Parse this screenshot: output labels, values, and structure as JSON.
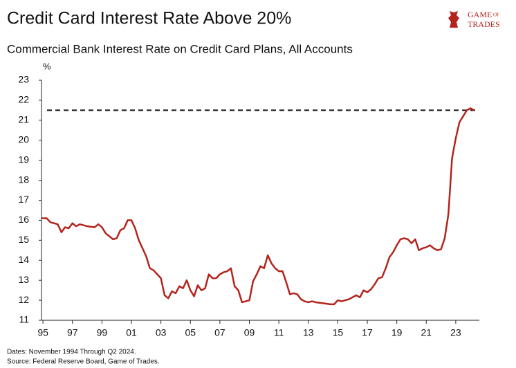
{
  "chart_data": {
    "type": "line",
    "title": "Credit Card Interest Rate Above 20%",
    "subtitle": "Commercial Bank Interest Rate on Credit Card Plans, All Accounts",
    "y_unit": "%",
    "notes": [
      "Dates: November 1994 Through Q2 2024.",
      "Source: Federal Reserve Board, Game of Trades."
    ],
    "logo": [
      "GAME",
      "OF",
      "TRADES"
    ],
    "color": "#b3241c",
    "reference_line": {
      "value": 21.5,
      "color": "#111111",
      "dashed": true
    },
    "x": [
      1994.9,
      1995.25,
      1995.5,
      1996.0,
      1996.25,
      1996.5,
      1996.75,
      1997.0,
      1997.25,
      1997.5,
      1998.0,
      1998.5,
      1998.75,
      1999.0,
      1999.25,
      1999.75,
      2000.0,
      2000.25,
      2000.5,
      2000.75,
      2001.0,
      2001.25,
      2001.5,
      2001.75,
      2002.0,
      2002.25,
      2002.5,
      2002.75,
      2003.0,
      2003.25,
      2003.5,
      2003.75,
      2004.0,
      2004.25,
      2004.5,
      2004.75,
      2005.0,
      2005.25,
      2005.5,
      2005.75,
      2006.0,
      2006.25,
      2006.5,
      2006.75,
      2007.0,
      2007.25,
      2007.5,
      2007.75,
      2008.0,
      2008.25,
      2008.5,
      2008.75,
      2009.0,
      2009.25,
      2009.5,
      2009.75,
      2010.0,
      2010.25,
      2010.5,
      2010.75,
      2011.0,
      2011.25,
      2011.5,
      2011.75,
      2012.0,
      2012.25,
      2012.5,
      2012.75,
      2013.0,
      2013.25,
      2013.5,
      2014.0,
      2014.5,
      2014.75,
      2015.0,
      2015.25,
      2015.5,
      2015.75,
      2016.0,
      2016.25,
      2016.5,
      2016.75,
      2017.0,
      2017.25,
      2017.5,
      2017.75,
      2018.0,
      2018.25,
      2018.5,
      2018.75,
      2019.0,
      2019.25,
      2019.5,
      2019.75,
      2020.0,
      2020.25,
      2020.5,
      2020.75,
      2021.0,
      2021.25,
      2021.5,
      2021.75,
      2022.0,
      2022.25,
      2022.5,
      2022.75,
      2023.0,
      2023.25,
      2023.5,
      2023.75,
      2024.0,
      2024.25
    ],
    "values": [
      16.1,
      16.1,
      15.9,
      15.8,
      15.4,
      15.65,
      15.6,
      15.85,
      15.7,
      15.8,
      15.7,
      15.65,
      15.8,
      15.65,
      15.35,
      15.05,
      15.1,
      15.5,
      15.6,
      16.0,
      16.0,
      15.6,
      15.0,
      14.6,
      14.2,
      13.6,
      13.5,
      13.3,
      13.1,
      12.25,
      12.1,
      12.45,
      12.35,
      12.7,
      12.6,
      13.0,
      12.5,
      12.2,
      12.75,
      12.5,
      12.6,
      13.3,
      13.1,
      13.1,
      13.3,
      13.4,
      13.45,
      13.6,
      12.7,
      12.5,
      11.9,
      11.95,
      12.0,
      12.95,
      13.3,
      13.7,
      13.6,
      14.25,
      13.85,
      13.6,
      13.45,
      13.45,
      12.9,
      12.3,
      12.35,
      12.3,
      12.05,
      11.95,
      11.9,
      11.95,
      11.9,
      11.85,
      11.8,
      11.8,
      12.0,
      11.95,
      12.0,
      12.05,
      12.15,
      12.25,
      12.15,
      12.5,
      12.4,
      12.55,
      12.8,
      13.1,
      13.15,
      13.6,
      14.15,
      14.4,
      14.75,
      15.05,
      15.1,
      15.05,
      14.85,
      15.05,
      14.5,
      14.6,
      14.65,
      14.75,
      14.6,
      14.5,
      14.55,
      15.1,
      16.3,
      19.1,
      20.1,
      20.9,
      21.2,
      21.5,
      21.6,
      21.5
    ],
    "xlim": [
      1994.9,
      2024.6
    ],
    "xticks": [
      {
        "value": 1995,
        "label": "95"
      },
      {
        "value": 1997,
        "label": "97"
      },
      {
        "value": 1999,
        "label": "99"
      },
      {
        "value": 2001,
        "label": "01"
      },
      {
        "value": 2003,
        "label": "03"
      },
      {
        "value": 2005,
        "label": "05"
      },
      {
        "value": 2007,
        "label": "07"
      },
      {
        "value": 2009,
        "label": "09"
      },
      {
        "value": 2011,
        "label": "11"
      },
      {
        "value": 2013,
        "label": "13"
      },
      {
        "value": 2015,
        "label": "15"
      },
      {
        "value": 2017,
        "label": "17"
      },
      {
        "value": 2019,
        "label": "19"
      },
      {
        "value": 2021,
        "label": "21"
      },
      {
        "value": 2023,
        "label": "23"
      }
    ],
    "ylim": [
      11,
      23
    ],
    "yticks": [
      11,
      12,
      13,
      14,
      15,
      16,
      17,
      18,
      19,
      20,
      21,
      22,
      23
    ],
    "grid": false
  }
}
